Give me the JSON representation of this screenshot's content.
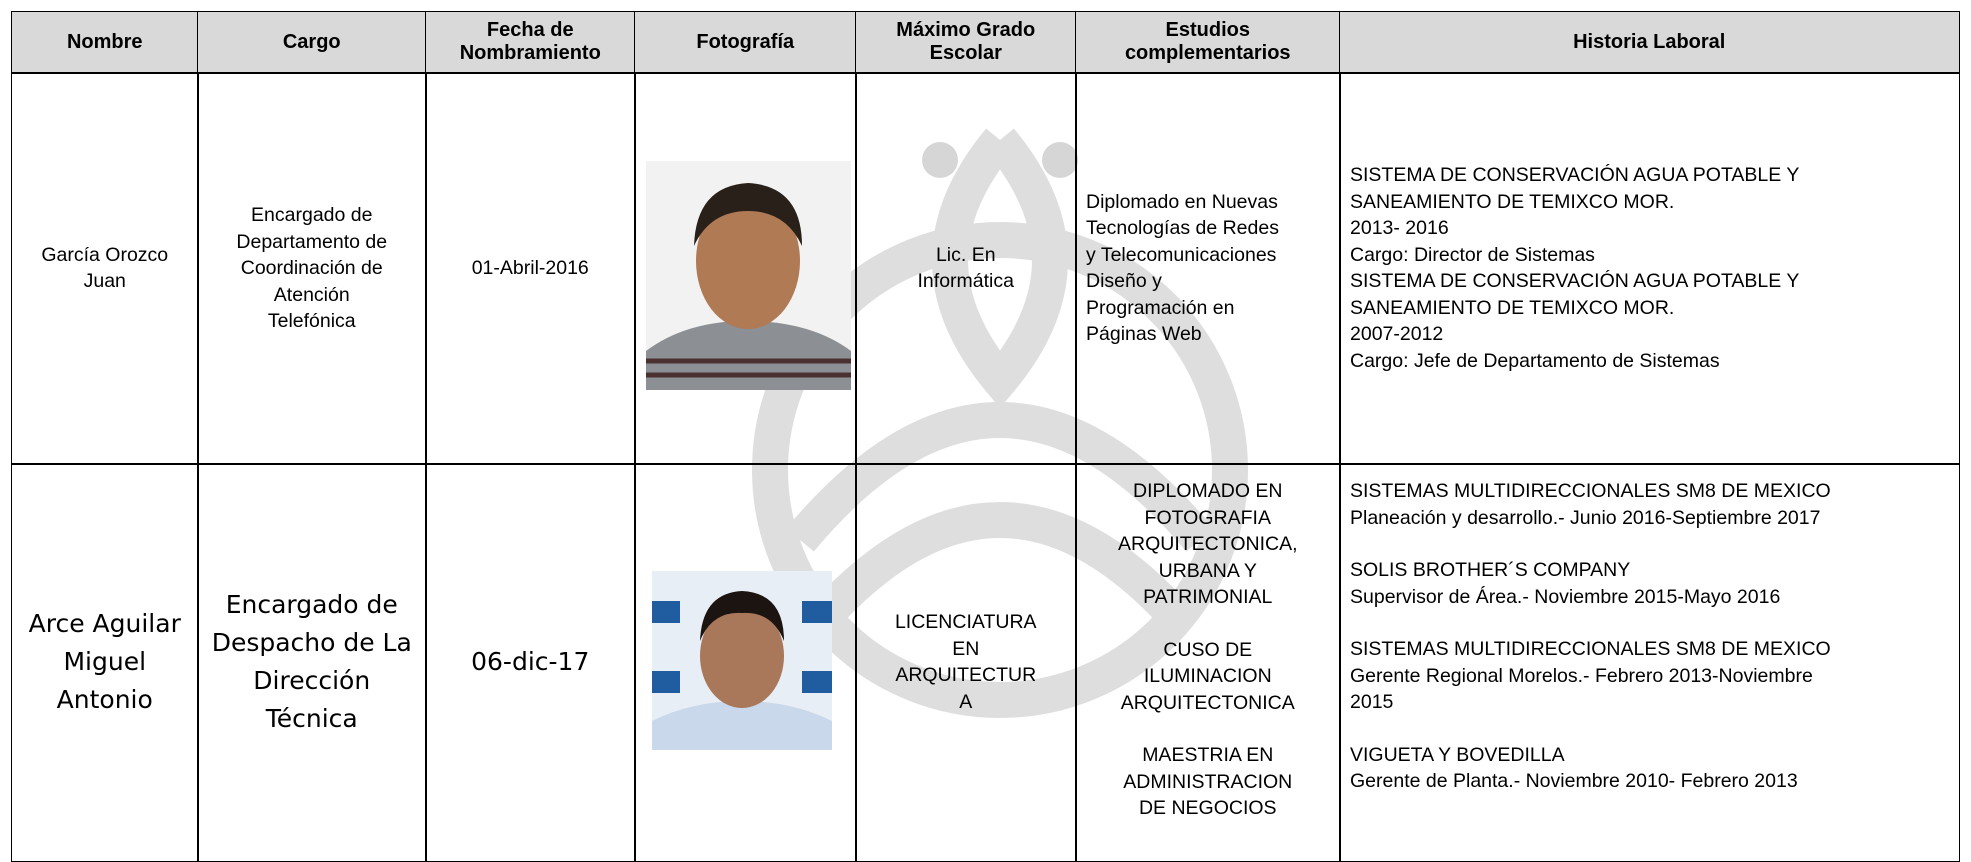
{
  "header": [
    [
      "Nombre"
    ],
    [
      "Cargo"
    ],
    [
      "Fecha de",
      "Nombramiento"
    ],
    [
      "Fotografía"
    ],
    [
      "Máximo Grado",
      "Escolar"
    ],
    [
      "Estudios",
      "complementarios"
    ],
    [
      "Historia Laboral"
    ]
  ],
  "rows": [
    {
      "nombre": [
        "García Orozco",
        "Juan"
      ],
      "cargo": [
        "Encargado de",
        "Departamento de",
        "Coordinación de",
        "Atención",
        "Telefónica"
      ],
      "fecha": [
        "01-Abril-2016"
      ],
      "grado": [
        "Lic. En",
        "Informática"
      ],
      "estudios": [
        "Diplomado en Nuevas",
        "Tecnologías de Redes",
        "y Telecomunicaciones",
        "Diseño y",
        "Programación en",
        "Páginas Web"
      ],
      "historia": [
        "SISTEMA DE CONSERVACIÓN AGUA POTABLE Y",
        "SANEAMIENTO DE TEMIXCO MOR.",
        "2013- 2016",
        "Cargo: Director de Sistemas",
        "SISTEMA DE CONSERVACIÓN AGUA POTABLE Y",
        "SANEAMIENTO DE TEMIXCO MOR.",
        "2007-2012",
        "Cargo: Jefe de Departamento de Sistemas"
      ]
    },
    {
      "nombre": [
        "Arce Aguilar",
        "Miguel",
        "Antonio"
      ],
      "cargo": [
        "Encargado de",
        "Despacho de La",
        "Dirección",
        "Técnica"
      ],
      "fecha": [
        "06-dic-17"
      ],
      "grado": [
        "LICENCIATURA",
        "EN",
        "ARQUITECTUR",
        "A"
      ],
      "estudios": [
        [
          "DIPLOMADO EN",
          "FOTOGRAFIA",
          "ARQUITECTONICA,",
          "URBANA Y",
          "PATRIMONIAL"
        ],
        [
          "CUSO DE",
          "ILUMINACION",
          "ARQUITECTONICA"
        ],
        [
          "MAESTRIA EN",
          "ADMINISTRACION",
          "DE NEGOCIOS"
        ]
      ],
      "historia": [
        [
          "SISTEMAS MULTIDIRECCIONALES SM8 DE MEXICO",
          "Planeación y desarrollo.- Junio 2016-Septiembre 2017"
        ],
        [
          "SOLIS BROTHER´S COMPANY",
          "Supervisor de Área.- Noviembre 2015-Mayo 2016"
        ],
        [
          "SISTEMAS MULTIDIRECCIONALES SM8 DE MEXICO",
          "Gerente Regional Morelos.- Febrero 2013-Noviembre",
          "2015"
        ],
        [
          "VIGUETA Y BOVEDILLA",
          "Gerente de Planta.- Noviembre 2010- Febrero 2013"
        ]
      ]
    }
  ]
}
